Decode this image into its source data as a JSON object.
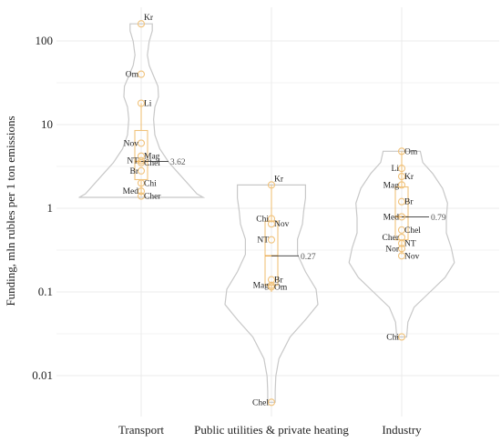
{
  "chart_data": {
    "type": "violin",
    "title": "",
    "xlabel": "",
    "ylabel": "Funding, mln rubles per 1 ton emissions",
    "yscale": "log",
    "ylim": [
      0.003,
      300
    ],
    "y_ticks": [
      {
        "value": 0.01,
        "label": "0.01"
      },
      {
        "value": 0.1,
        "label": "0.1"
      },
      {
        "value": 1,
        "label": "1"
      },
      {
        "value": 10,
        "label": "10"
      },
      {
        "value": 100,
        "label": "100"
      }
    ],
    "grid": true,
    "categories": [
      "Transport",
      "Public utilities & private heating",
      "Industry"
    ],
    "groups": [
      {
        "category": "Transport",
        "median": 3.62,
        "median_label": "3.62",
        "q1": 2.2,
        "q3": 8.5,
        "whisker_low": 1.4,
        "whisker_high": 18,
        "violin_min": 1.35,
        "violin_max": 160,
        "points": [
          {
            "label": "Kr",
            "value": 160
          },
          {
            "label": "Om",
            "value": 40
          },
          {
            "label": "Li",
            "value": 18
          },
          {
            "label": "Nov",
            "value": 6
          },
          {
            "label": "Mag",
            "value": 4.2
          },
          {
            "label": "NT",
            "value": 3.7
          },
          {
            "label": "Chel",
            "value": 3.5
          },
          {
            "label": "Br",
            "value": 2.8
          },
          {
            "label": "Chi",
            "value": 2.0
          },
          {
            "label": "Med",
            "value": 1.6
          },
          {
            "label": "Cher",
            "value": 1.4
          }
        ]
      },
      {
        "category": "Public utilities & private heating",
        "median": 0.27,
        "median_label": "0.27",
        "q1": 0.12,
        "q3": 0.7,
        "whisker_low": 0.1,
        "whisker_high": 1.9,
        "violin_min": 0.0048,
        "violin_max": 1.9,
        "points": [
          {
            "label": "Kr",
            "value": 1.9
          },
          {
            "label": "Chi",
            "value": 0.75
          },
          {
            "label": "Nov",
            "value": 0.65
          },
          {
            "label": "NT",
            "value": 0.42
          },
          {
            "label": "Br",
            "value": 0.14
          },
          {
            "label": "Mag",
            "value": 0.12
          },
          {
            "label": "Om",
            "value": 0.115
          },
          {
            "label": "Chel",
            "value": 0.0048
          }
        ]
      },
      {
        "category": "Industry",
        "median": 0.79,
        "median_label": "0.79",
        "q1": 0.42,
        "q3": 1.8,
        "whisker_low": 0.28,
        "whisker_high": 4.8,
        "violin_min": 0.029,
        "violin_max": 4.8,
        "points": [
          {
            "label": "Om",
            "value": 4.8
          },
          {
            "label": "Li",
            "value": 3.0
          },
          {
            "label": "Kr",
            "value": 2.4
          },
          {
            "label": "Mag",
            "value": 1.9
          },
          {
            "label": "Br",
            "value": 1.2
          },
          {
            "label": "Med",
            "value": 0.79
          },
          {
            "label": "Chel",
            "value": 0.55
          },
          {
            "label": "Cher",
            "value": 0.45
          },
          {
            "label": "NT",
            "value": 0.38
          },
          {
            "label": "Nor",
            "value": 0.33
          },
          {
            "label": "Nov",
            "value": 0.27
          },
          {
            "label": "Chi",
            "value": 0.029
          }
        ]
      }
    ]
  }
}
